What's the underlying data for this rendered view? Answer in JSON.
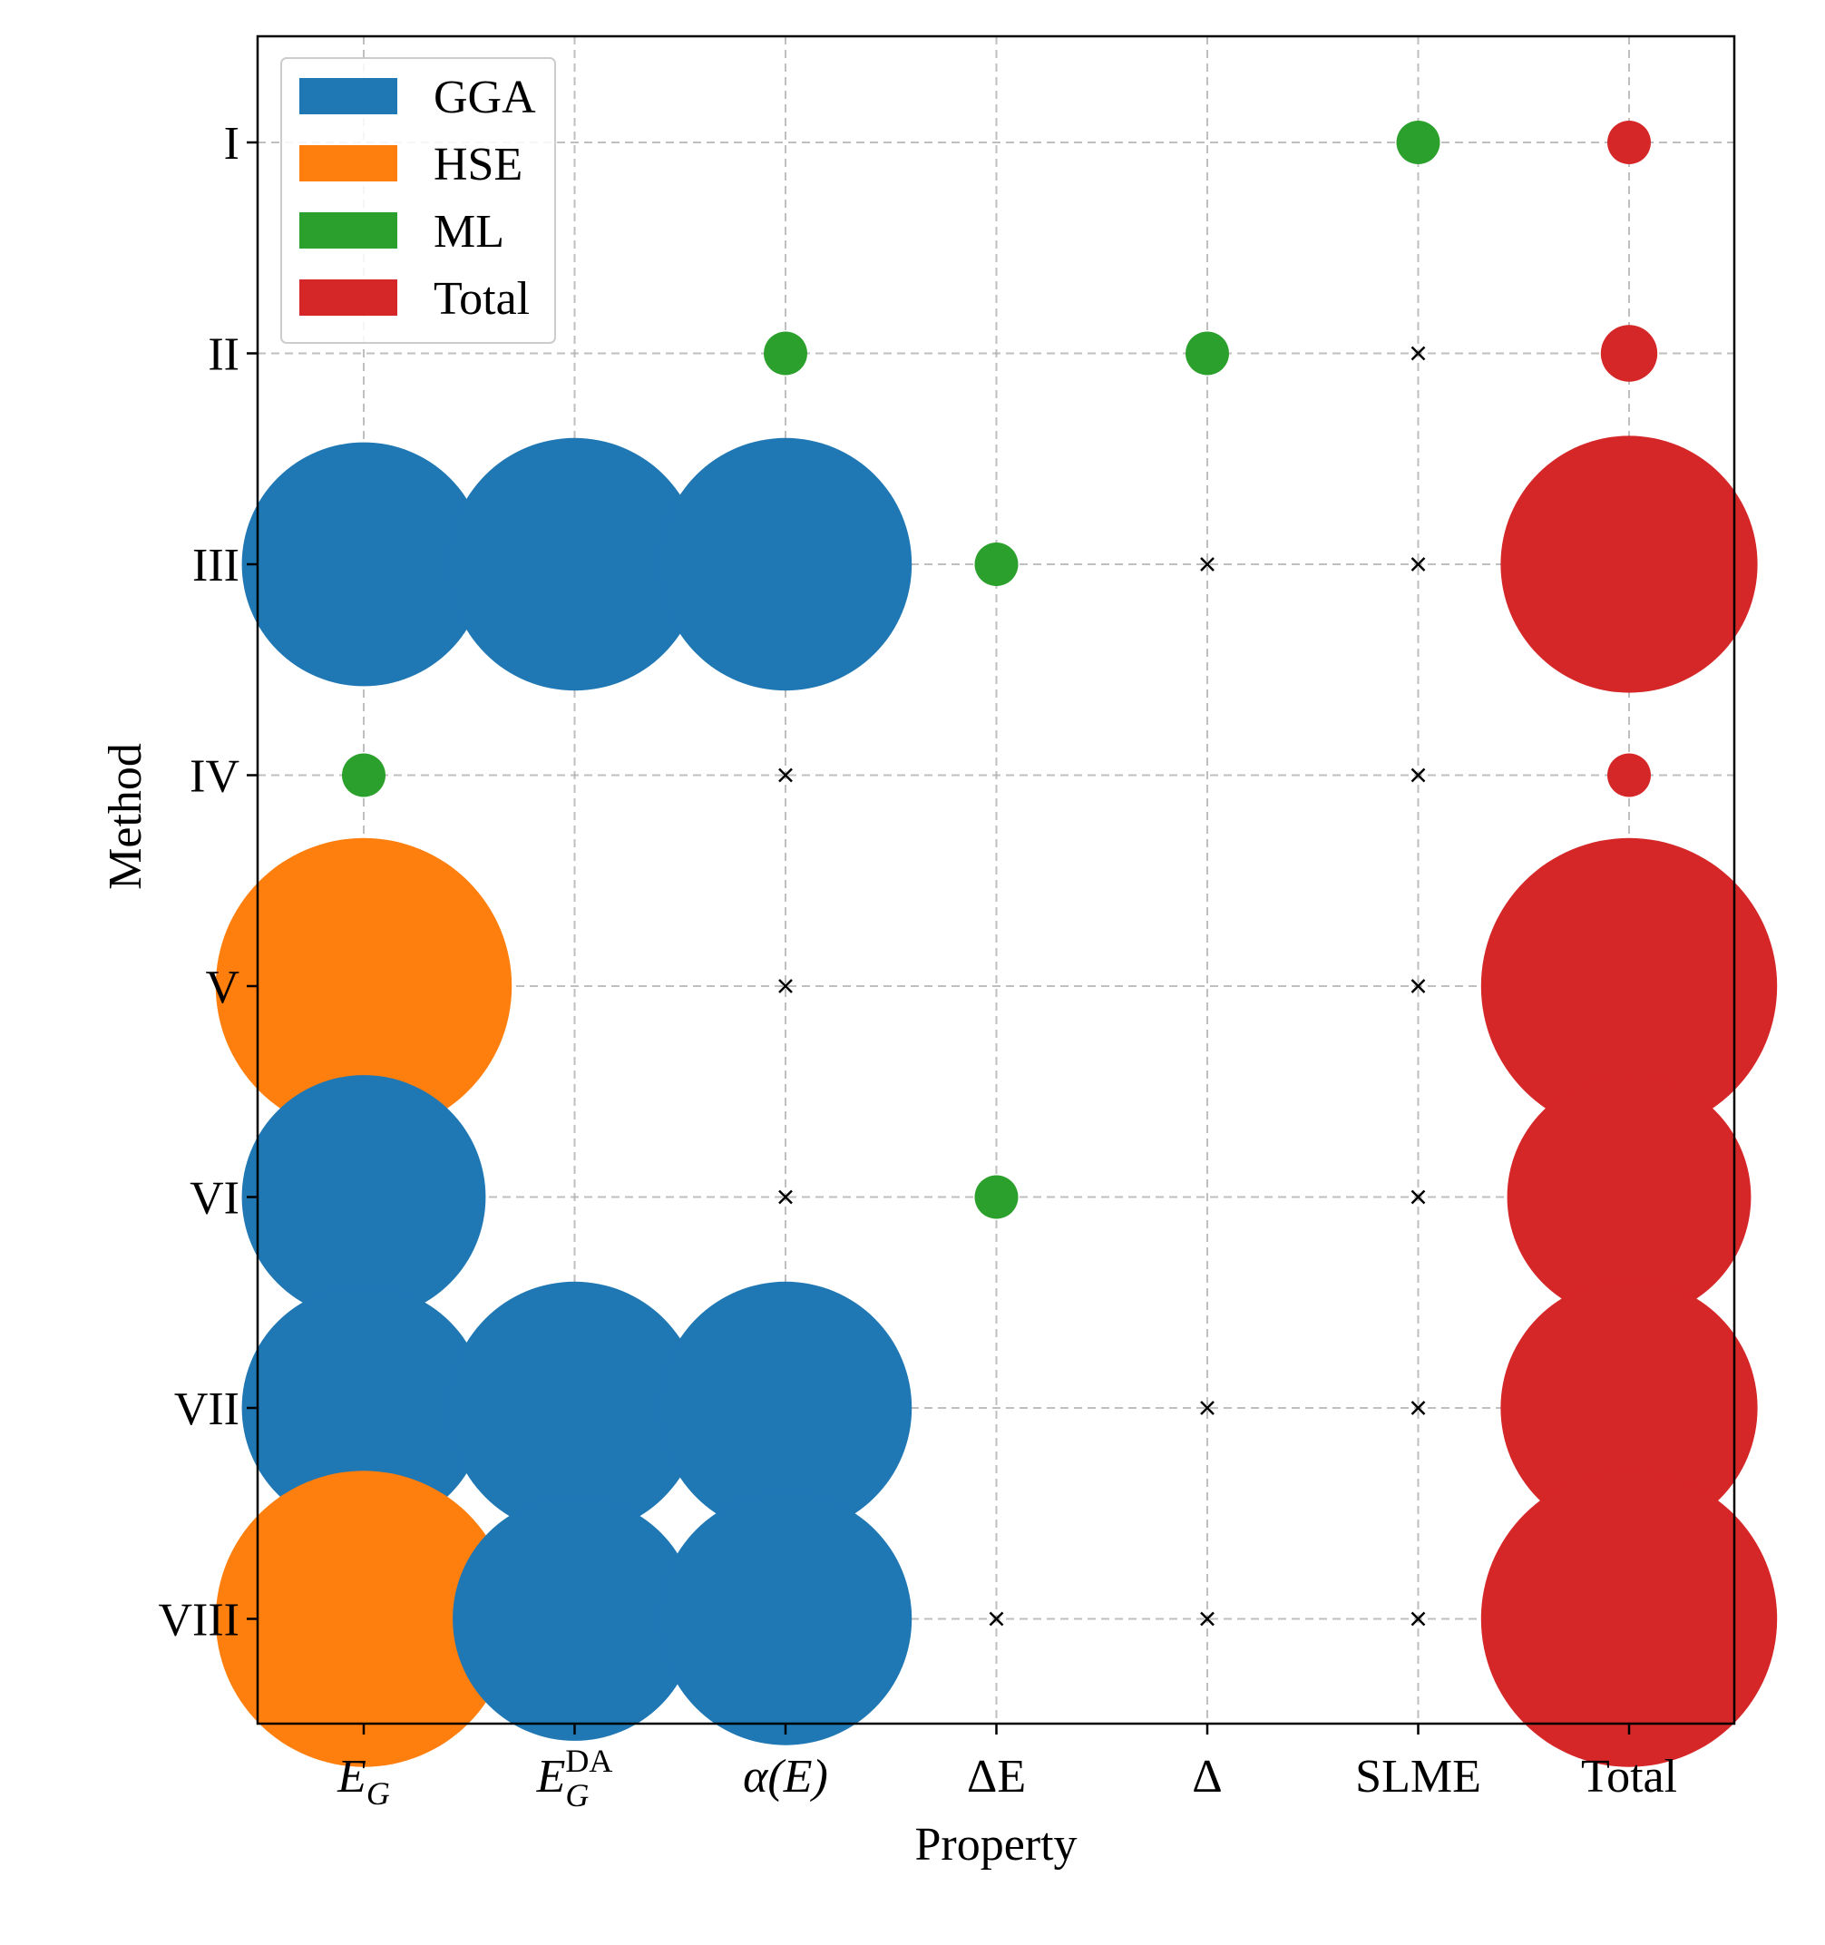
{
  "chart_data": {
    "type": "scatter",
    "subtype": "bubble-matrix",
    "title": "",
    "xlabel": "Property",
    "ylabel": "Method",
    "x_categories": [
      {
        "id": "EG",
        "label": "E",
        "sub": "G",
        "sup": "",
        "italic": true
      },
      {
        "id": "EGDA",
        "label": "E",
        "sub": "G",
        "sup": "DA",
        "italic": true
      },
      {
        "id": "alphaE",
        "label": "α(E)",
        "sub": "",
        "sup": "",
        "italic": true
      },
      {
        "id": "dE",
        "label": "ΔE",
        "sub": "",
        "sup": "",
        "italic": false
      },
      {
        "id": "Delta",
        "label": "Δ",
        "sub": "",
        "sup": "",
        "italic": false
      },
      {
        "id": "SLME",
        "label": "SLME",
        "sub": "",
        "sup": "",
        "italic": false
      },
      {
        "id": "Total",
        "label": "Total",
        "sub": "",
        "sup": "",
        "italic": false
      }
    ],
    "y_categories": [
      "I",
      "II",
      "III",
      "IV",
      "V",
      "VI",
      "VII",
      "VIII"
    ],
    "grid": true,
    "legend": {
      "position": "top-left",
      "entries": [
        {
          "name": "GGA",
          "color": "#1f77b4"
        },
        {
          "name": "HSE",
          "color": "#ff7f0e"
        },
        {
          "name": "ML",
          "color": "#2ca02c"
        },
        {
          "name": "Total",
          "color": "#d62728"
        }
      ]
    },
    "colors": {
      "GGA": "#1f77b4",
      "HSE": "#ff7f0e",
      "ML": "#2ca02c",
      "Total": "#d62728",
      "marker": "#000000"
    },
    "points": [
      {
        "x": 5,
        "y": 0,
        "method": "ML",
        "size": 1
      },
      {
        "x": 6,
        "y": 0,
        "method": "Total",
        "size": 1
      },
      {
        "x": 2,
        "y": 1,
        "method": "ML",
        "size": 1
      },
      {
        "x": 4,
        "y": 1,
        "method": "ML",
        "size": 1
      },
      {
        "x": 6,
        "y": 1,
        "method": "Total",
        "size": 1.3
      },
      {
        "x": 0,
        "y": 2,
        "method": "GGA",
        "size": 5.6
      },
      {
        "x": 1,
        "y": 2,
        "method": "GGA",
        "size": 5.8
      },
      {
        "x": 2,
        "y": 2,
        "method": "GGA",
        "size": 5.8
      },
      {
        "x": 3,
        "y": 2,
        "method": "ML",
        "size": 1
      },
      {
        "x": 6,
        "y": 2,
        "method": "Total",
        "size": 5.9
      },
      {
        "x": 0,
        "y": 3,
        "method": "ML",
        "size": 1
      },
      {
        "x": 6,
        "y": 3,
        "method": "Total",
        "size": 1
      },
      {
        "x": 0,
        "y": 4,
        "method": "HSE",
        "size": 6.8
      },
      {
        "x": 6,
        "y": 4,
        "method": "Total",
        "size": 6.8
      },
      {
        "x": 0,
        "y": 5,
        "method": "GGA",
        "size": 5.6
      },
      {
        "x": 3,
        "y": 5,
        "method": "ML",
        "size": 1
      },
      {
        "x": 6,
        "y": 5,
        "method": "Total",
        "size": 5.6
      },
      {
        "x": 0,
        "y": 6,
        "method": "GGA",
        "size": 5.6
      },
      {
        "x": 1,
        "y": 6,
        "method": "GGA",
        "size": 5.8
      },
      {
        "x": 2,
        "y": 6,
        "method": "GGA",
        "size": 5.8
      },
      {
        "x": 6,
        "y": 6,
        "method": "Total",
        "size": 5.9
      },
      {
        "x": 0,
        "y": 7,
        "method": "HSE",
        "size": 6.8
      },
      {
        "x": 1,
        "y": 7,
        "method": "GGA",
        "size": 5.6
      },
      {
        "x": 2,
        "y": 7,
        "method": "GGA",
        "size": 5.8
      },
      {
        "x": 6,
        "y": 7,
        "method": "Total",
        "size": 6.8
      }
    ],
    "x_markers": [
      {
        "x": 5,
        "y": 1
      },
      {
        "x": 4,
        "y": 2
      },
      {
        "x": 5,
        "y": 2
      },
      {
        "x": 2,
        "y": 3
      },
      {
        "x": 5,
        "y": 3
      },
      {
        "x": 2,
        "y": 4
      },
      {
        "x": 5,
        "y": 4
      },
      {
        "x": 2,
        "y": 5
      },
      {
        "x": 5,
        "y": 5
      },
      {
        "x": 4,
        "y": 6
      },
      {
        "x": 5,
        "y": 6
      },
      {
        "x": 3,
        "y": 7
      },
      {
        "x": 4,
        "y": 7
      },
      {
        "x": 5,
        "y": 7
      }
    ]
  }
}
